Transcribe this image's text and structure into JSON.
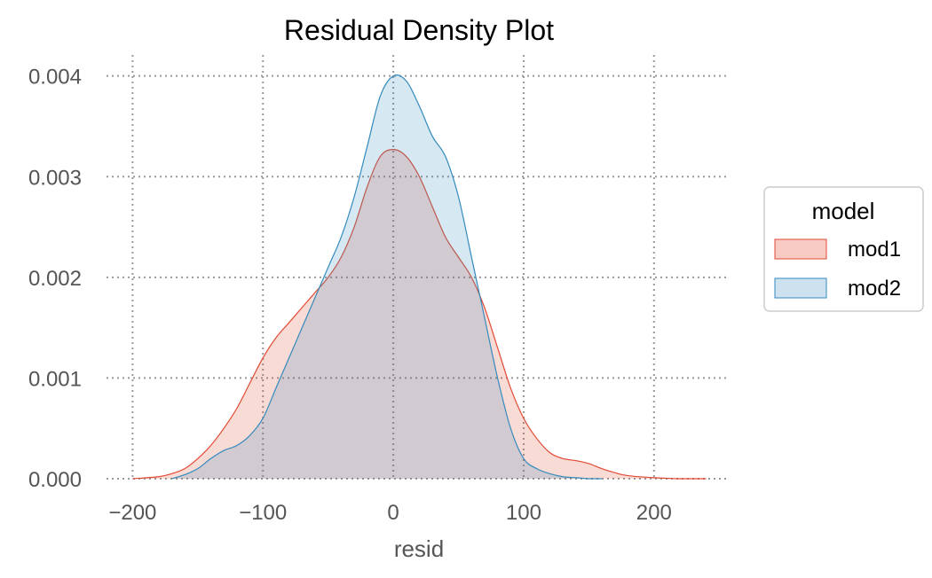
{
  "chart_data": {
    "type": "area",
    "title": "Residual Density Plot",
    "xlabel": "resid",
    "ylabel": "",
    "xlim": [
      -220,
      258
    ],
    "ylim": [
      0,
      0.00405
    ],
    "x_ticks": [
      -200,
      -100,
      0,
      100,
      200
    ],
    "x_tick_labels": [
      "−200",
      "−100",
      "0",
      "100",
      "200"
    ],
    "y_ticks": [
      0,
      0.001,
      0.002,
      0.003,
      0.004
    ],
    "y_tick_labels": [
      "0.000",
      "0.001",
      "0.002",
      "0.003",
      "0.004"
    ],
    "grid": true,
    "legend": {
      "title": "model",
      "placement": "right"
    },
    "series": [
      {
        "name": "mod1",
        "color": "#E24A33",
        "fill": "#F7CBC4",
        "x": [
          -200,
          -180,
          -170,
          -160,
          -150,
          -140,
          -130,
          -120,
          -110,
          -100,
          -90,
          -80,
          -70,
          -60,
          -50,
          -40,
          -30,
          -20,
          -10,
          0,
          10,
          20,
          30,
          40,
          50,
          60,
          70,
          80,
          90,
          100,
          110,
          120,
          130,
          140,
          150,
          160,
          170,
          180,
          200,
          220,
          240
        ],
        "y": [
          0.0,
          2e-05,
          5e-05,
          0.0001,
          0.0002,
          0.00033,
          0.0005,
          0.0007,
          0.00095,
          0.0012,
          0.0014,
          0.00155,
          0.0017,
          0.00185,
          0.002,
          0.0022,
          0.0025,
          0.0029,
          0.0032,
          0.00327,
          0.0032,
          0.003,
          0.0027,
          0.0024,
          0.0022,
          0.002,
          0.0017,
          0.0013,
          0.0009,
          0.0006,
          0.0004,
          0.00026,
          0.0002,
          0.00018,
          0.00015,
          0.0001,
          6e-05,
          3e-05,
          1e-05,
          0.0,
          0.0
        ]
      },
      {
        "name": "mod2",
        "color": "#348ABD",
        "fill": "#CDE1EE",
        "x": [
          -170,
          -160,
          -150,
          -140,
          -130,
          -120,
          -110,
          -100,
          -90,
          -80,
          -70,
          -60,
          -50,
          -40,
          -30,
          -20,
          -10,
          0,
          10,
          20,
          30,
          40,
          50,
          60,
          70,
          80,
          90,
          100,
          110,
          120,
          130,
          140,
          150,
          160
        ],
        "y": [
          0.0,
          4e-05,
          0.0001,
          0.0002,
          0.00028,
          0.00033,
          0.00043,
          0.0006,
          0.0009,
          0.0012,
          0.0015,
          0.0018,
          0.0021,
          0.0024,
          0.0028,
          0.0033,
          0.0038,
          0.004,
          0.00395,
          0.0037,
          0.0034,
          0.0032,
          0.0028,
          0.0022,
          0.0016,
          0.001,
          0.0005,
          0.0002,
          0.0001,
          5e-05,
          2e-05,
          1e-05,
          0.0,
          0.0
        ]
      }
    ]
  }
}
